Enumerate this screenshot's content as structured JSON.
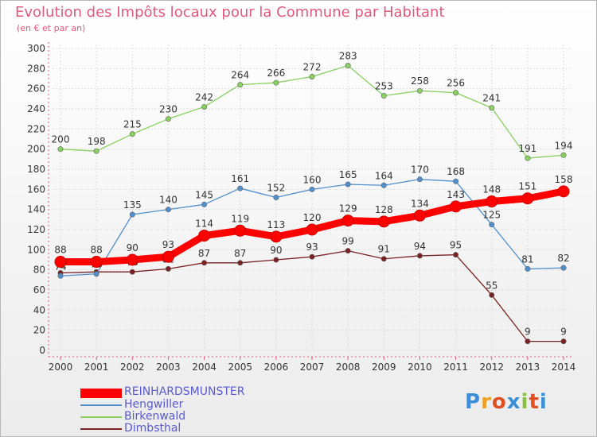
{
  "header": {
    "title": "Evolution des Impôts locaux pour la Commune par Habitant",
    "subtitle": "(en € et par an)"
  },
  "logo": {
    "text": "Proxiti"
  },
  "chart_data": {
    "type": "line",
    "title": "Evolution des Impôts locaux pour la Commune par Habitant",
    "subtitle": "(en € et par an)",
    "categories": [
      "2000",
      "2001",
      "2002",
      "2003",
      "2004",
      "2005",
      "2006",
      "2007",
      "2008",
      "2009",
      "2010",
      "2011",
      "2012",
      "2013",
      "2014"
    ],
    "ylim": [
      0,
      300
    ],
    "yticks": [
      0,
      20,
      40,
      60,
      80,
      100,
      120,
      140,
      160,
      180,
      200,
      220,
      240,
      260,
      280,
      300
    ],
    "grid": true,
    "legend_position": "bottom-left",
    "series": [
      {
        "name": "REINHARDSMUNSTER",
        "color": "#ff0000",
        "values": [
          88,
          88,
          90,
          93,
          114,
          119,
          113,
          120,
          129,
          128,
          134,
          143,
          148,
          151,
          158
        ]
      },
      {
        "name": "Hengwiller",
        "color": "#4f8fce",
        "values": [
          74,
          76,
          135,
          140,
          145,
          161,
          152,
          160,
          165,
          164,
          170,
          168,
          125,
          81,
          82
        ]
      },
      {
        "name": "Birkenwald",
        "color": "#88d060",
        "values": [
          200,
          198,
          215,
          230,
          242,
          264,
          266,
          272,
          283,
          253,
          258,
          256,
          241,
          191,
          194
        ]
      },
      {
        "name": "Dimbsthal",
        "color": "#7a2020",
        "values": [
          77,
          78,
          78,
          81,
          87,
          87,
          90,
          93,
          99,
          91,
          94,
          95,
          55,
          9,
          9
        ]
      }
    ]
  }
}
